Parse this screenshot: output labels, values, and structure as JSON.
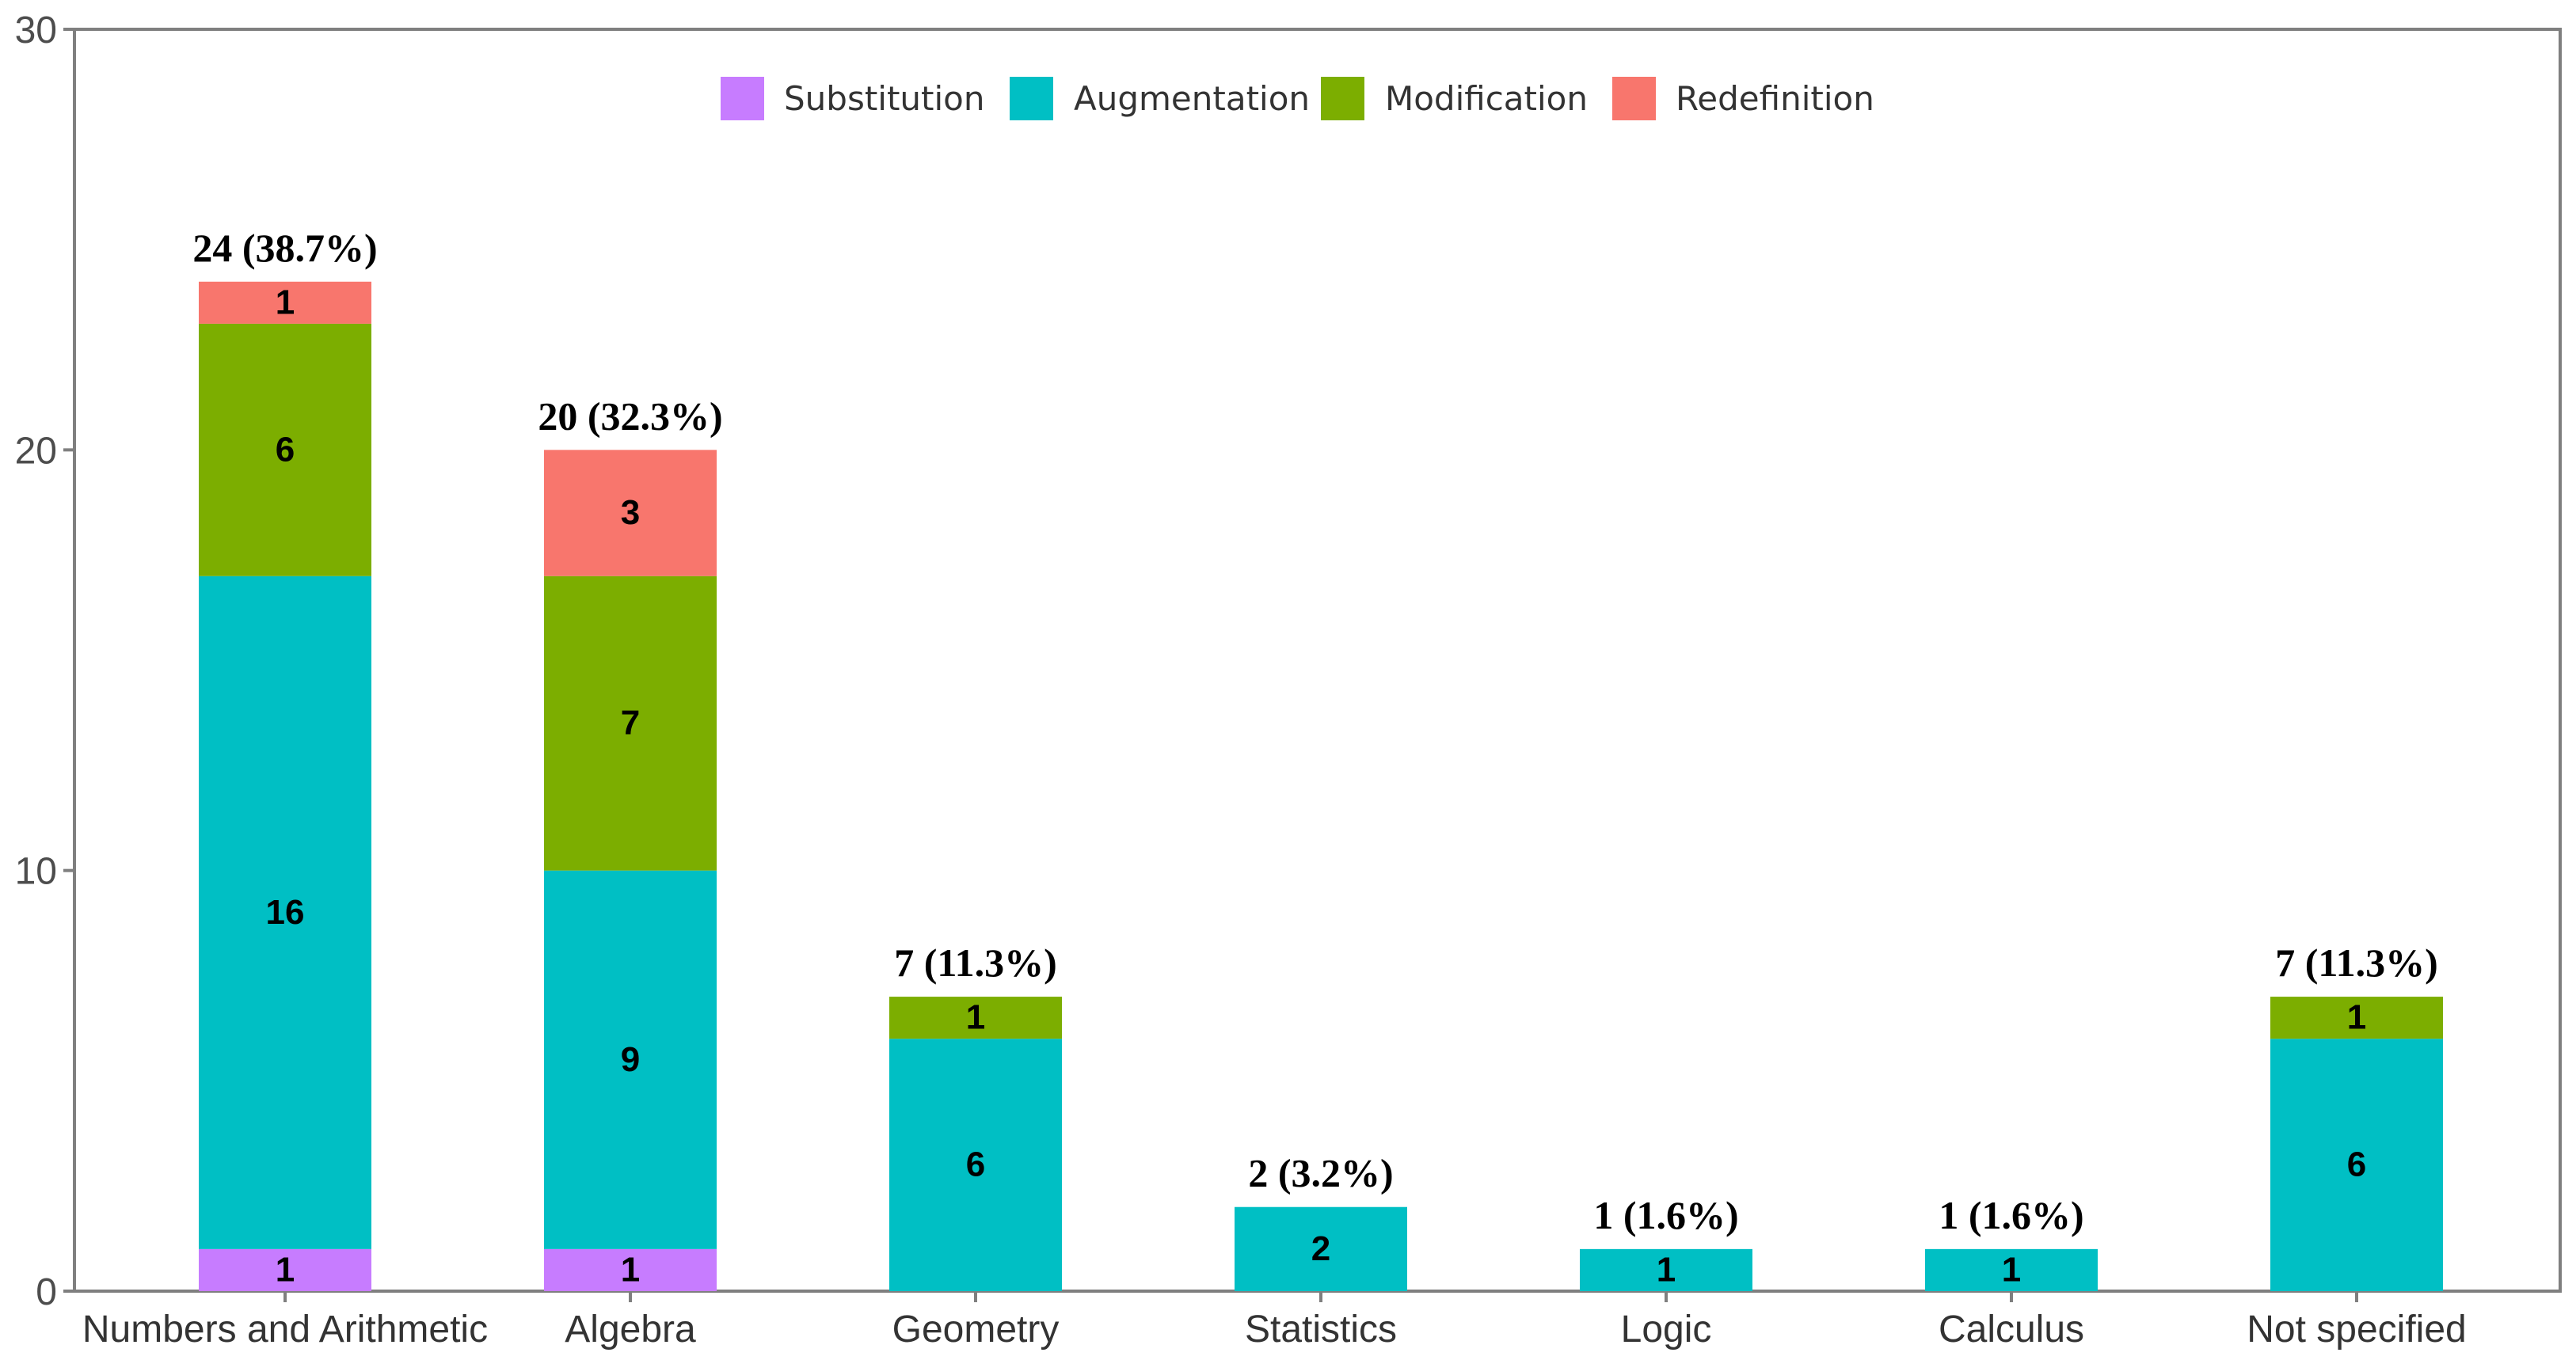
{
  "chart_data": {
    "type": "bar",
    "stacked": true,
    "title": "",
    "xlabel": "",
    "ylabel": "",
    "ylim": [
      0,
      30
    ],
    "yticks": [
      0,
      10,
      20,
      30
    ],
    "grid": false,
    "legend_position": "top-center",
    "categories": [
      "Numbers and Arithmetic",
      "Algebra",
      "Geometry",
      "Statistics",
      "Logic",
      "Calculus",
      "Not specified"
    ],
    "series": [
      {
        "name": "Substitution",
        "color": "#c77cff",
        "values": [
          1,
          1,
          0,
          0,
          0,
          0,
          0
        ]
      },
      {
        "name": "Augmentation",
        "color": "#00bfc4",
        "values": [
          16,
          9,
          6,
          2,
          1,
          1,
          6
        ]
      },
      {
        "name": "Modification",
        "color": "#7cae00",
        "values": [
          6,
          7,
          1,
          0,
          0,
          0,
          1
        ]
      },
      {
        "name": "Redefinition",
        "color": "#f8766d",
        "values": [
          1,
          3,
          0,
          0,
          0,
          0,
          0
        ]
      }
    ],
    "totals": [
      24,
      20,
      7,
      2,
      1,
      1,
      7
    ],
    "total_labels": [
      "24 (38.7%)",
      "20 (32.3%)",
      "7 (11.3%)",
      "2 (3.2%)",
      "1 (1.6%)",
      "1 (1.6%)",
      "7 (11.3%)"
    ]
  }
}
